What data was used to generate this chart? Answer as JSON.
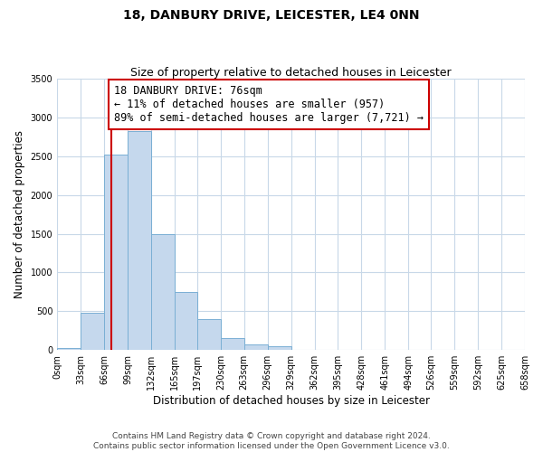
{
  "title": "18, DANBURY DRIVE, LEICESTER, LE4 0NN",
  "subtitle": "Size of property relative to detached houses in Leicester",
  "xlabel": "Distribution of detached houses by size in Leicester",
  "ylabel": "Number of detached properties",
  "bin_edges": [
    0,
    33,
    66,
    99,
    132,
    165,
    197,
    230,
    263,
    296,
    329,
    362,
    395,
    428,
    461,
    494,
    526,
    559,
    592,
    625,
    658
  ],
  "bar_heights": [
    20,
    480,
    2520,
    2820,
    1500,
    750,
    400,
    150,
    75,
    50,
    0,
    0,
    0,
    0,
    0,
    0,
    0,
    0,
    0,
    0
  ],
  "bar_color": "#c5d8ed",
  "bar_edge_color": "#7aafd4",
  "property_line_x": 76,
  "property_line_color": "#cc0000",
  "annotation_line1": "18 DANBURY DRIVE: 76sqm",
  "annotation_line2": "← 11% of detached houses are smaller (957)",
  "annotation_line3": "89% of semi-detached houses are larger (7,721) →",
  "annotation_box_color": "#ffffff",
  "annotation_box_edge_color": "#cc0000",
  "ylim": [
    0,
    3500
  ],
  "yticks": [
    0,
    500,
    1000,
    1500,
    2000,
    2500,
    3000,
    3500
  ],
  "tick_labels": [
    "0sqm",
    "33sqm",
    "66sqm",
    "99sqm",
    "132sqm",
    "165sqm",
    "197sqm",
    "230sqm",
    "263sqm",
    "296sqm",
    "329sqm",
    "362sqm",
    "395sqm",
    "428sqm",
    "461sqm",
    "494sqm",
    "526sqm",
    "559sqm",
    "592sqm",
    "625sqm",
    "658sqm"
  ],
  "footer_text": "Contains HM Land Registry data © Crown copyright and database right 2024.\nContains public sector information licensed under the Open Government Licence v3.0.",
  "bg_color": "#ffffff",
  "grid_color": "#c8d8e8",
  "title_fontsize": 10,
  "subtitle_fontsize": 9,
  "axis_label_fontsize": 8.5,
  "tick_fontsize": 7,
  "annotation_fontsize": 8.5,
  "footer_fontsize": 6.5
}
